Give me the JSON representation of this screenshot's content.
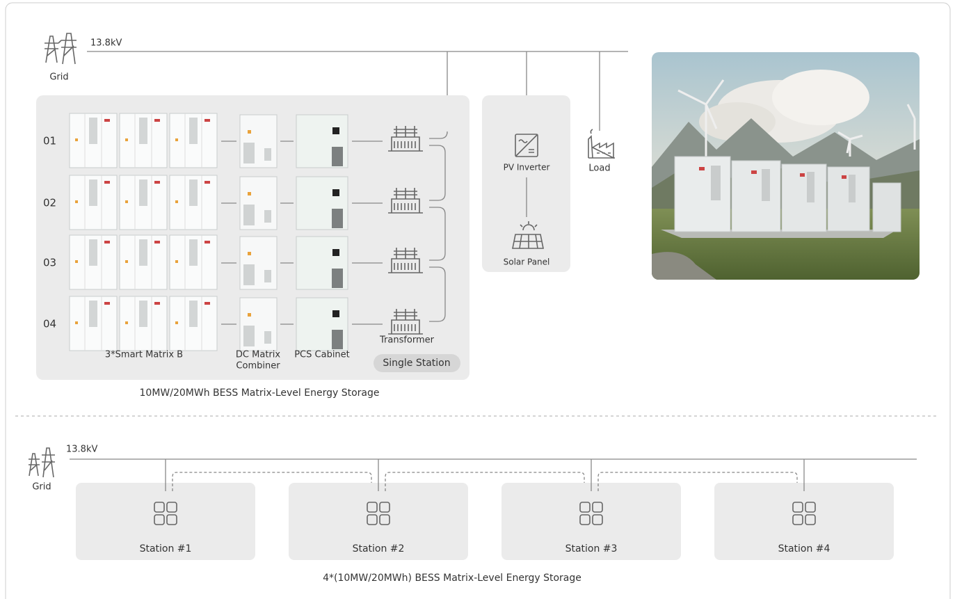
{
  "top": {
    "voltage": "13.8kV",
    "grid_label": "Grid",
    "rows": [
      "01",
      "02",
      "03",
      "04"
    ],
    "smart_matrix": "3*Smart Matrix B",
    "dc_combiner": [
      "DC Matrix",
      "Combiner"
    ],
    "pcs": "PCS Cabinet",
    "transformer": "Transformer",
    "single_station": "Single Station",
    "caption": "10MW/20MWh BESS Matrix-Level Energy Storage",
    "pv_inverter": "PV Inverter",
    "solar_panel": "Solar Panel",
    "load": "Load"
  },
  "bottom": {
    "voltage": "13.8kV",
    "grid_label": "Grid",
    "stations": [
      "Station #1",
      "Station #2",
      "Station #3",
      "Station #4"
    ],
    "caption": "4*(10MW/20MWh) BESS Matrix-Level Energy Storage"
  }
}
